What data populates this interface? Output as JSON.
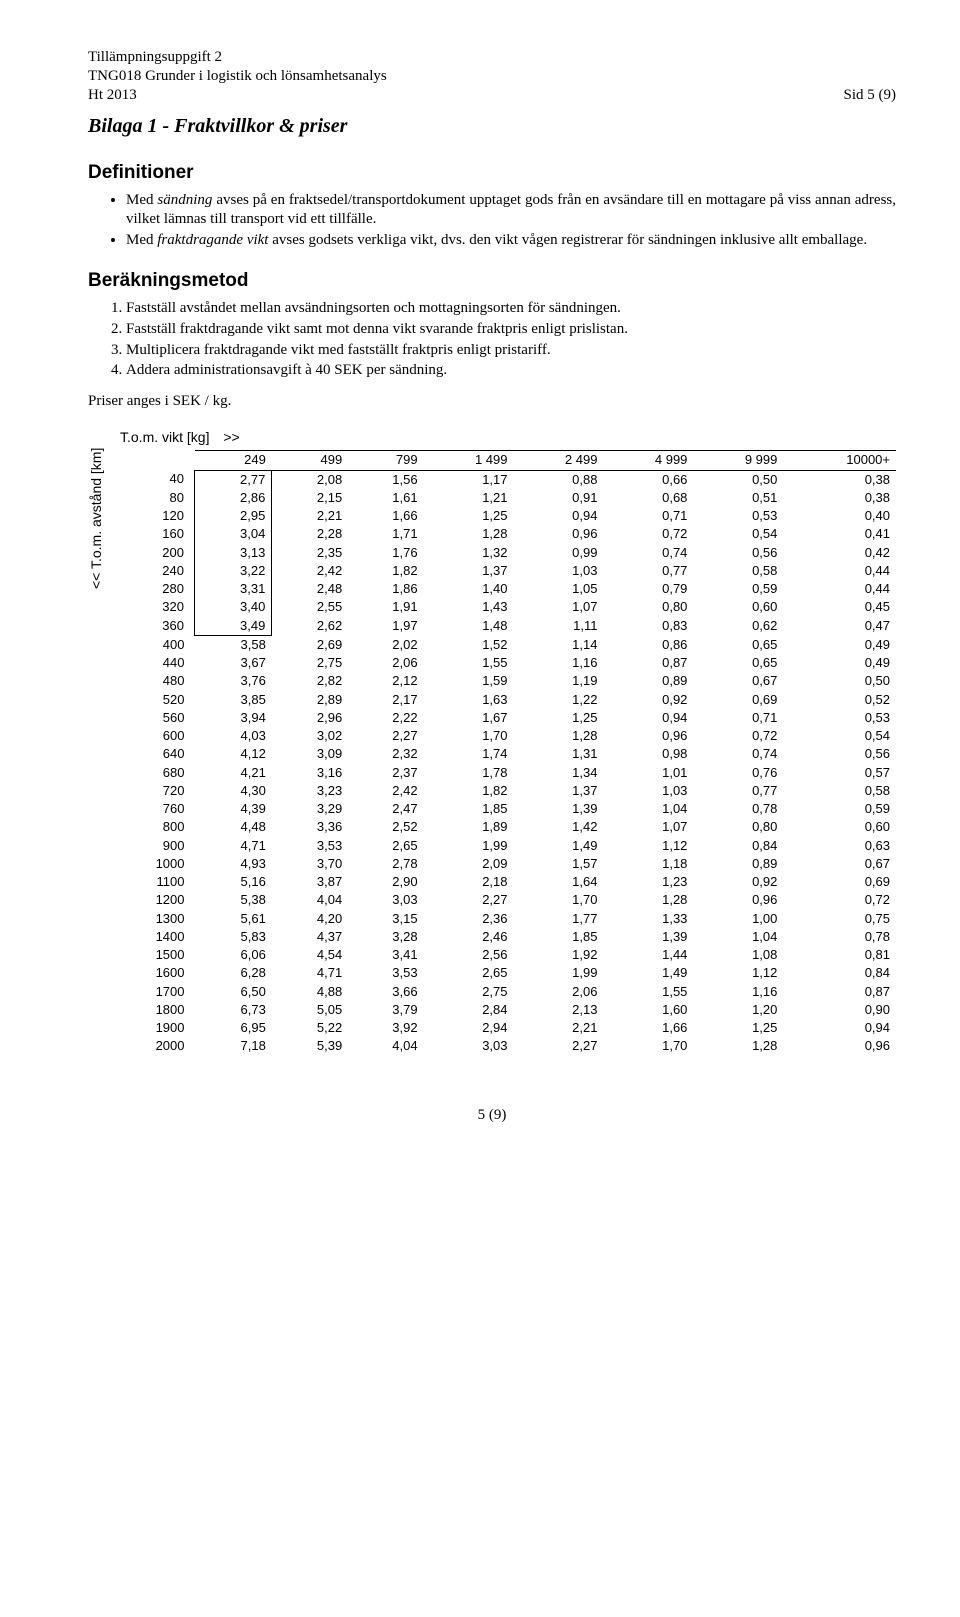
{
  "header": {
    "l1": "Tillämpningsuppgift 2",
    "l2": "TNG018 Grunder i logistik och lönsamhetsanalys",
    "l3_left": "Ht 2013",
    "l3_right": "Sid 5 (9)"
  },
  "bilaga_title": "Bilaga 1 - Fraktvillkor & priser",
  "definitions": {
    "heading": "Definitioner",
    "items": [
      {
        "pre": "Med ",
        "em": "sändning",
        "post": " avses på en fraktsedel/transportdokument upptaget gods från en avsändare till en mottagare på viss annan adress, vilket lämnas till transport vid ett tillfälle."
      },
      {
        "pre": "Med ",
        "em": "fraktdragande vikt",
        "post": " avses godsets verkliga vikt, dvs. den vikt vågen registrerar för sändningen inklusive allt emballage."
      }
    ]
  },
  "method": {
    "heading": "Beräkningsmetod",
    "items": [
      "Fastställ avståndet mellan avsändningsorten och mottagningsorten för sändningen.",
      "Fastställ fraktdragande vikt samt mot denna vikt svarande fraktpris enligt prislistan.",
      "Multiplicera fraktdragande vikt med fastställt fraktpris enligt pristariff.",
      "Addera administrationsavgift à 40 SEK per sändning."
    ]
  },
  "prices_note": "Priser anges i SEK / kg.",
  "table": {
    "y_axis_label": "<<   T.o.m. avstånd [km]",
    "top_left_label": "T.o.m. vikt [kg]",
    "top_arrow": ">>",
    "weight_headers": [
      "249",
      "499",
      "799",
      "1 499",
      "2 499",
      "4 999",
      "9 999",
      "10000+"
    ],
    "highlight_first_col_rows": 9,
    "rows": [
      {
        "d": "40",
        "v": [
          "2,77",
          "2,08",
          "1,56",
          "1,17",
          "0,88",
          "0,66",
          "0,50",
          "0,38"
        ]
      },
      {
        "d": "80",
        "v": [
          "2,86",
          "2,15",
          "1,61",
          "1,21",
          "0,91",
          "0,68",
          "0,51",
          "0,38"
        ]
      },
      {
        "d": "120",
        "v": [
          "2,95",
          "2,21",
          "1,66",
          "1,25",
          "0,94",
          "0,71",
          "0,53",
          "0,40"
        ]
      },
      {
        "d": "160",
        "v": [
          "3,04",
          "2,28",
          "1,71",
          "1,28",
          "0,96",
          "0,72",
          "0,54",
          "0,41"
        ]
      },
      {
        "d": "200",
        "v": [
          "3,13",
          "2,35",
          "1,76",
          "1,32",
          "0,99",
          "0,74",
          "0,56",
          "0,42"
        ]
      },
      {
        "d": "240",
        "v": [
          "3,22",
          "2,42",
          "1,82",
          "1,37",
          "1,03",
          "0,77",
          "0,58",
          "0,44"
        ]
      },
      {
        "d": "280",
        "v": [
          "3,31",
          "2,48",
          "1,86",
          "1,40",
          "1,05",
          "0,79",
          "0,59",
          "0,44"
        ]
      },
      {
        "d": "320",
        "v": [
          "3,40",
          "2,55",
          "1,91",
          "1,43",
          "1,07",
          "0,80",
          "0,60",
          "0,45"
        ]
      },
      {
        "d": "360",
        "v": [
          "3,49",
          "2,62",
          "1,97",
          "1,48",
          "1,11",
          "0,83",
          "0,62",
          "0,47"
        ]
      },
      {
        "d": "400",
        "v": [
          "3,58",
          "2,69",
          "2,02",
          "1,52",
          "1,14",
          "0,86",
          "0,65",
          "0,49"
        ]
      },
      {
        "d": "440",
        "v": [
          "3,67",
          "2,75",
          "2,06",
          "1,55",
          "1,16",
          "0,87",
          "0,65",
          "0,49"
        ]
      },
      {
        "d": "480",
        "v": [
          "3,76",
          "2,82",
          "2,12",
          "1,59",
          "1,19",
          "0,89",
          "0,67",
          "0,50"
        ]
      },
      {
        "d": "520",
        "v": [
          "3,85",
          "2,89",
          "2,17",
          "1,63",
          "1,22",
          "0,92",
          "0,69",
          "0,52"
        ]
      },
      {
        "d": "560",
        "v": [
          "3,94",
          "2,96",
          "2,22",
          "1,67",
          "1,25",
          "0,94",
          "0,71",
          "0,53"
        ]
      },
      {
        "d": "600",
        "v": [
          "4,03",
          "3,02",
          "2,27",
          "1,70",
          "1,28",
          "0,96",
          "0,72",
          "0,54"
        ]
      },
      {
        "d": "640",
        "v": [
          "4,12",
          "3,09",
          "2,32",
          "1,74",
          "1,31",
          "0,98",
          "0,74",
          "0,56"
        ]
      },
      {
        "d": "680",
        "v": [
          "4,21",
          "3,16",
          "2,37",
          "1,78",
          "1,34",
          "1,01",
          "0,76",
          "0,57"
        ]
      },
      {
        "d": "720",
        "v": [
          "4,30",
          "3,23",
          "2,42",
          "1,82",
          "1,37",
          "1,03",
          "0,77",
          "0,58"
        ]
      },
      {
        "d": "760",
        "v": [
          "4,39",
          "3,29",
          "2,47",
          "1,85",
          "1,39",
          "1,04",
          "0,78",
          "0,59"
        ]
      },
      {
        "d": "800",
        "v": [
          "4,48",
          "3,36",
          "2,52",
          "1,89",
          "1,42",
          "1,07",
          "0,80",
          "0,60"
        ]
      },
      {
        "d": "900",
        "v": [
          "4,71",
          "3,53",
          "2,65",
          "1,99",
          "1,49",
          "1,12",
          "0,84",
          "0,63"
        ]
      },
      {
        "d": "1000",
        "v": [
          "4,93",
          "3,70",
          "2,78",
          "2,09",
          "1,57",
          "1,18",
          "0,89",
          "0,67"
        ]
      },
      {
        "d": "1100",
        "v": [
          "5,16",
          "3,87",
          "2,90",
          "2,18",
          "1,64",
          "1,23",
          "0,92",
          "0,69"
        ]
      },
      {
        "d": "1200",
        "v": [
          "5,38",
          "4,04",
          "3,03",
          "2,27",
          "1,70",
          "1,28",
          "0,96",
          "0,72"
        ]
      },
      {
        "d": "1300",
        "v": [
          "5,61",
          "4,20",
          "3,15",
          "2,36",
          "1,77",
          "1,33",
          "1,00",
          "0,75"
        ]
      },
      {
        "d": "1400",
        "v": [
          "5,83",
          "4,37",
          "3,28",
          "2,46",
          "1,85",
          "1,39",
          "1,04",
          "0,78"
        ]
      },
      {
        "d": "1500",
        "v": [
          "6,06",
          "4,54",
          "3,41",
          "2,56",
          "1,92",
          "1,44",
          "1,08",
          "0,81"
        ]
      },
      {
        "d": "1600",
        "v": [
          "6,28",
          "4,71",
          "3,53",
          "2,65",
          "1,99",
          "1,49",
          "1,12",
          "0,84"
        ]
      },
      {
        "d": "1700",
        "v": [
          "6,50",
          "4,88",
          "3,66",
          "2,75",
          "2,06",
          "1,55",
          "1,16",
          "0,87"
        ]
      },
      {
        "d": "1800",
        "v": [
          "6,73",
          "5,05",
          "3,79",
          "2,84",
          "2,13",
          "1,60",
          "1,20",
          "0,90"
        ]
      },
      {
        "d": "1900",
        "v": [
          "6,95",
          "5,22",
          "3,92",
          "2,94",
          "2,21",
          "1,66",
          "1,25",
          "0,94"
        ]
      },
      {
        "d": "2000",
        "v": [
          "7,18",
          "5,39",
          "4,04",
          "3,03",
          "2,27",
          "1,70",
          "1,28",
          "0,96"
        ]
      }
    ]
  },
  "footer_page": "5 (9)"
}
